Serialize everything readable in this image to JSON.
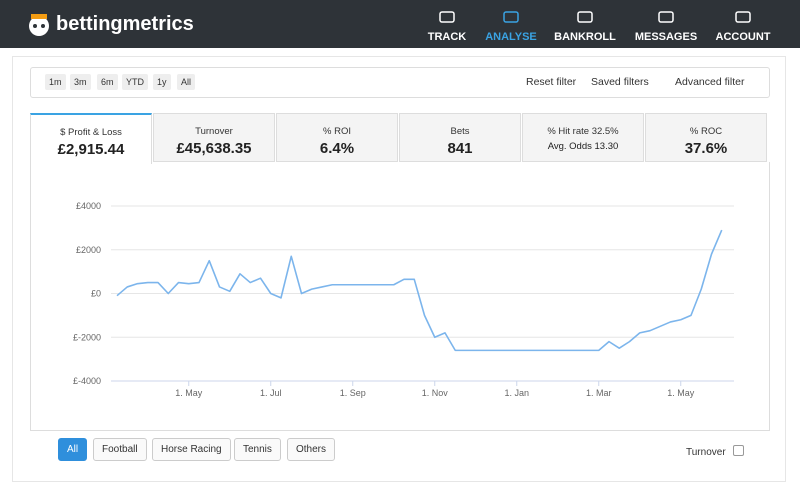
{
  "header": {
    "brand": "bettingmetrics",
    "nav": [
      "TRACK",
      "ANALYSE",
      "BANKROLL",
      "MESSAGES",
      "ACCOUNT"
    ],
    "active": "ANALYSE"
  },
  "filters": {
    "periods": [
      "1m",
      "3m",
      "6m",
      "YTD",
      "1y",
      "All"
    ],
    "actions": [
      "Reset filter",
      "Saved filters",
      "Advanced filter"
    ]
  },
  "tabs": [
    {
      "label": "$ Profit & Loss",
      "value": "£2,915.44"
    },
    {
      "label": "Turnover",
      "value": "£45,638.35"
    },
    {
      "label": "% ROI",
      "value": "6.4%"
    },
    {
      "label": "Bets",
      "value": "841"
    },
    {
      "label": "% Hit rate 32.5%",
      "value": "Avg. Odds 13.30"
    },
    {
      "label": "% ROC",
      "value": "37.6%"
    }
  ],
  "chart_data": {
    "type": "line",
    "color": "#7cb5ec",
    "grid": true,
    "categories": [
      null,
      null,
      null,
      null,
      null,
      null,
      null,
      "1. May",
      null,
      null,
      null,
      null,
      null,
      null,
      null,
      "1. Jul",
      null,
      null,
      null,
      null,
      null,
      null,
      null,
      "1. Sep",
      null,
      null,
      null,
      null,
      null,
      null,
      null,
      "1. Nov",
      null,
      null,
      null,
      null,
      null,
      null,
      null,
      "1. Jan",
      null,
      null,
      null,
      null,
      null,
      null,
      null,
      "1. Mar",
      null,
      null,
      null,
      null,
      null,
      null,
      null,
      "1. May",
      null,
      null,
      null,
      null
    ],
    "values": [
      -100,
      300,
      450,
      500,
      500,
      0,
      500,
      450,
      500,
      1500,
      300,
      100,
      900,
      500,
      700,
      0,
      -200,
      1700,
      0,
      200,
      300,
      400,
      400,
      400,
      400,
      400,
      400,
      400,
      650,
      650,
      -1000,
      -2000,
      -1800,
      -2600,
      -2600,
      -2600,
      -2600,
      -2600,
      -2600,
      -2600,
      -2600,
      -2600,
      -2600,
      -2600,
      -2600,
      -2600,
      -2600,
      -2600,
      -2200,
      -2500,
      -2200,
      -1800,
      -1700,
      -1500,
      -1300,
      -1200,
      -1000,
      200,
      1800,
      2900
    ],
    "ylim": [
      -4000,
      4000
    ],
    "yticks": [
      {
        "value": -4000,
        "label": "£-4000"
      },
      {
        "value": -2000,
        "label": "£-2000"
      },
      {
        "value": 0,
        "label": "£0"
      },
      {
        "value": 2000,
        "label": "£2000"
      },
      {
        "value": 4000,
        "label": "£4000"
      }
    ]
  },
  "sports": [
    "All",
    "Football",
    "Horse Racing",
    "Tennis",
    "Others"
  ],
  "turnover_toggle": "Turnover"
}
